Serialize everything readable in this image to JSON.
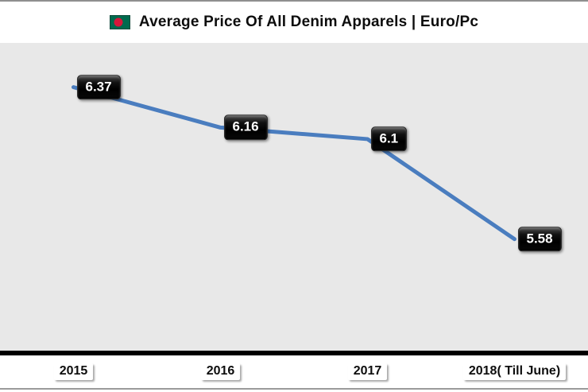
{
  "title": {
    "text": "Average Price Of All Denim Apparels | Euro/Pc"
  },
  "colors": {
    "line": "#4a7dbf",
    "plot_background": "#e8e8e8",
    "data_label_background": "#000000",
    "data_label_text": "#ffffff",
    "axis_line": "#000000",
    "flag_green": "#006a4e",
    "flag_red": "#d6173a",
    "frame_border": "#8f8f8f"
  },
  "chart_data": {
    "type": "line",
    "title": "Average Price Of All Denim Apparels | Euro/Pc",
    "categories": [
      "2015",
      "2016",
      "2017",
      "2018( Till June)"
    ],
    "values": [
      6.37,
      6.16,
      6.1,
      5.58
    ],
    "data_labels": [
      "6.37",
      "6.16",
      "6.1",
      "5.58"
    ],
    "xlabel": "",
    "ylabel": "",
    "ylim": [
      5.0,
      6.6
    ],
    "grid": false,
    "legend_position": "none",
    "y_axis_visible": false,
    "series": [
      {
        "name": "Average Price Of All Denim Apparels | Euro/Pc",
        "values": [
          6.37,
          6.16,
          6.1,
          5.58
        ]
      }
    ]
  }
}
